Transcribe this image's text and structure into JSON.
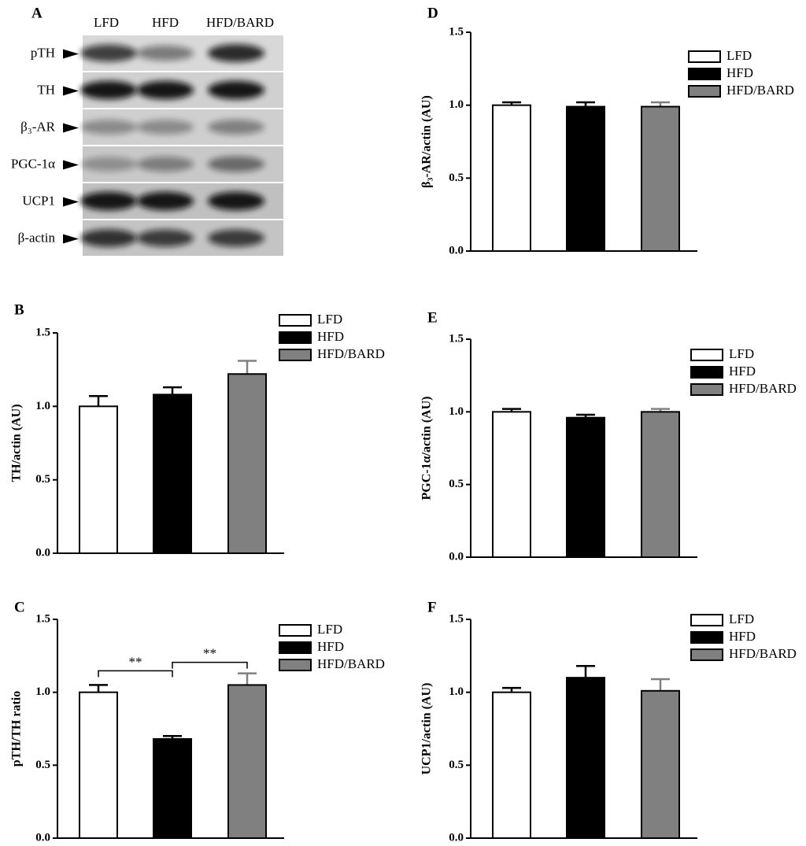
{
  "blot": {
    "panel": "A",
    "columns": [
      "LFD",
      "HFD",
      "HFD/BARD"
    ],
    "rows": [
      "pTH",
      "TH",
      "β₃-AR",
      "PGC-1α",
      "UCP1",
      "β-actin"
    ]
  },
  "chart_data": [
    {
      "type": "bar",
      "panel": "B",
      "ylabel": "TH/actin (AU)",
      "ylim": [
        0,
        1.5
      ],
      "yticks": [
        {
          "value": 0,
          "label": "0.0"
        },
        {
          "value": 0.5,
          "label": "0.5"
        },
        {
          "value": 1,
          "label": "1.0"
        },
        {
          "value": 1.5,
          "label": "1.5"
        }
      ],
      "series": [
        {
          "name": "LFD",
          "color": "#ffffff",
          "values": [
            1.0
          ],
          "errors": [
            0.07
          ]
        },
        {
          "name": "HFD",
          "color": "#000000",
          "values": [
            1.08
          ],
          "errors": [
            0.05
          ]
        },
        {
          "name": "HFD/BARD",
          "color": "#808080",
          "values": [
            1.22
          ],
          "errors": [
            0.09
          ]
        }
      ]
    },
    {
      "type": "bar",
      "panel": "C",
      "ylabel": "pTH/TH ratio",
      "ylim": [
        0,
        1.5
      ],
      "yticks": [
        {
          "value": 0,
          "label": "0.0"
        },
        {
          "value": 0.5,
          "label": "0.5"
        },
        {
          "value": 1,
          "label": "1.0"
        },
        {
          "value": 1.5,
          "label": "1.5"
        }
      ],
      "annotations": [
        "**",
        "**"
      ],
      "series": [
        {
          "name": "LFD",
          "color": "#ffffff",
          "values": [
            1.0
          ],
          "errors": [
            0.05
          ]
        },
        {
          "name": "HFD",
          "color": "#000000",
          "values": [
            0.68
          ],
          "errors": [
            0.02
          ]
        },
        {
          "name": "HFD/BARD",
          "color": "#808080",
          "values": [
            1.05
          ],
          "errors": [
            0.08
          ]
        }
      ]
    },
    {
      "type": "bar",
      "panel": "D",
      "ylabel": "β₃-AR/actin (AU)",
      "ylim": [
        0,
        1.5
      ],
      "yticks": [
        {
          "value": 0,
          "label": "0.0"
        },
        {
          "value": 0.5,
          "label": "0.5"
        },
        {
          "value": 1,
          "label": "1.0"
        },
        {
          "value": 1.5,
          "label": "1.5"
        }
      ],
      "series": [
        {
          "name": "LFD",
          "color": "#ffffff",
          "values": [
            1.0
          ],
          "errors": [
            0.02
          ]
        },
        {
          "name": "HFD",
          "color": "#000000",
          "values": [
            0.99
          ],
          "errors": [
            0.03
          ]
        },
        {
          "name": "HFD/BARD",
          "color": "#808080",
          "values": [
            0.99
          ],
          "errors": [
            0.03
          ]
        }
      ]
    },
    {
      "type": "bar",
      "panel": "E",
      "ylabel": "PGC-1α/actin (AU)",
      "ylim": [
        0,
        1.5
      ],
      "yticks": [
        {
          "value": 0,
          "label": "0.0"
        },
        {
          "value": 0.5,
          "label": "0.5"
        },
        {
          "value": 1,
          "label": "1.0"
        },
        {
          "value": 1.5,
          "label": "1.5"
        }
      ],
      "series": [
        {
          "name": "LFD",
          "color": "#ffffff",
          "values": [
            1.0
          ],
          "errors": [
            0.02
          ]
        },
        {
          "name": "HFD",
          "color": "#000000",
          "values": [
            0.96
          ],
          "errors": [
            0.02
          ]
        },
        {
          "name": "HFD/BARD",
          "color": "#808080",
          "values": [
            1.0
          ],
          "errors": [
            0.02
          ]
        }
      ]
    },
    {
      "type": "bar",
      "panel": "F",
      "ylabel": "UCP1/actin (AU)",
      "ylim": [
        0,
        1.5
      ],
      "yticks": [
        {
          "value": 0,
          "label": "0.0"
        },
        {
          "value": 0.5,
          "label": "0.5"
        },
        {
          "value": 1,
          "label": "1.0"
        },
        {
          "value": 1.5,
          "label": "1.5"
        }
      ],
      "series": [
        {
          "name": "LFD",
          "color": "#ffffff",
          "values": [
            1.0
          ],
          "errors": [
            0.03
          ]
        },
        {
          "name": "HFD",
          "color": "#000000",
          "values": [
            1.1
          ],
          "errors": [
            0.08
          ]
        },
        {
          "name": "HFD/BARD",
          "color": "#808080",
          "values": [
            1.01
          ],
          "errors": [
            0.08
          ]
        }
      ]
    }
  ]
}
